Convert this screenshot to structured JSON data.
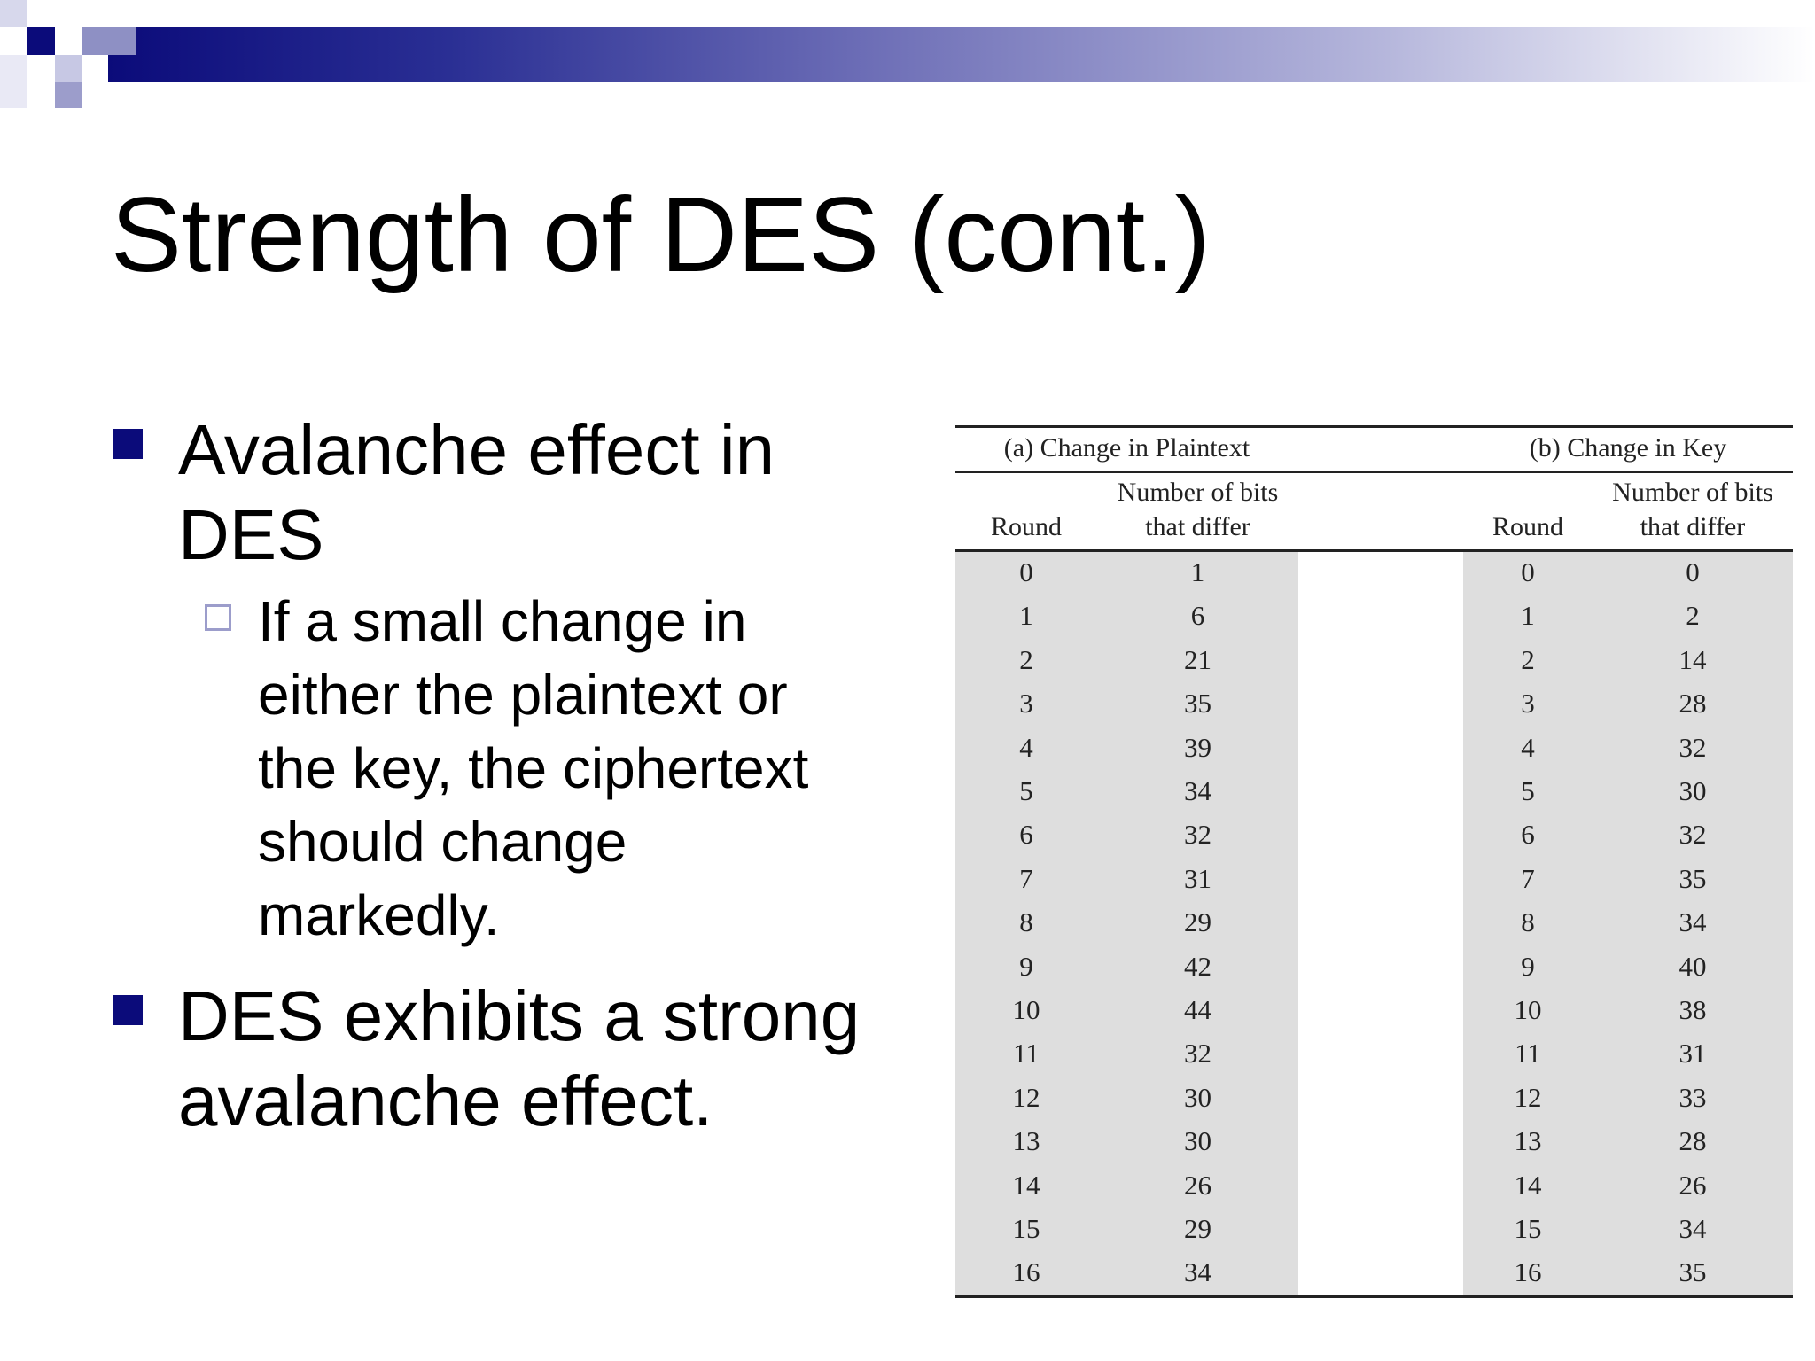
{
  "slide": {
    "title": "Strength of DES (cont.)",
    "bullets": [
      "Avalanche effect in DES",
      "If a small change in either the plaintext or the key, the ciphertext should change markedly.",
      "DES exhibits a strong avalanche effect."
    ],
    "bullet1_lines": [
      "Avalanche effect in",
      "DES"
    ],
    "sub_lines": [
      "If a small change in",
      "either the plaintext or",
      "the key, the ciphertext",
      "should change",
      "markedly."
    ],
    "bullet2_lines": [
      "DES exhibits a strong",
      "avalanche effect."
    ]
  },
  "table": {
    "group_a": "(a) Change in Plaintext",
    "group_b": "(b) Change in Key",
    "round_label": "Round",
    "bits_label_1": "Number of bits",
    "bits_label_2": "that differ",
    "rounds": [
      "0",
      "1",
      "2",
      "3",
      "4",
      "5",
      "6",
      "7",
      "8",
      "9",
      "10",
      "11",
      "12",
      "13",
      "14",
      "15",
      "16"
    ],
    "plaintext_bits": [
      "1",
      "6",
      "21",
      "35",
      "39",
      "34",
      "32",
      "31",
      "29",
      "42",
      "44",
      "32",
      "30",
      "30",
      "26",
      "29",
      "34"
    ],
    "key_bits": [
      "0",
      "2",
      "14",
      "28",
      "32",
      "30",
      "32",
      "35",
      "34",
      "40",
      "38",
      "31",
      "33",
      "28",
      "26",
      "34",
      "35"
    ]
  }
}
